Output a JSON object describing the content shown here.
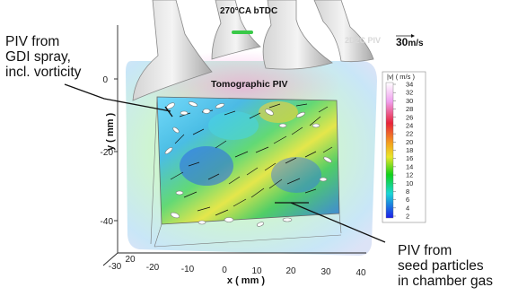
{
  "figure": {
    "title": "270°CA bTDC",
    "tomo_label": "Tomographic PIV",
    "faint_label": "2D2C PIV",
    "scale_label": "30",
    "scale_unit": "m/s",
    "y_axis_label": "y ( mm )",
    "x_axis_label": "x ( mm )",
    "y_ticks": [
      "0",
      "-20",
      "-40"
    ],
    "x_ticks": [
      "-30",
      "-20",
      "-10",
      "0",
      "10",
      "20",
      "30",
      "40"
    ],
    "x_ticks_extra": "20",
    "colorbar": {
      "title": "|v| ( m/s )",
      "ticks": [
        "34",
        "32",
        "30",
        "28",
        "26",
        "24",
        "22",
        "20",
        "18",
        "16",
        "14",
        "12",
        "10",
        "8",
        "6",
        "4",
        "2"
      ]
    }
  },
  "annotations": {
    "left": [
      "PIV from",
      "GDI spray,",
      "incl. vorticity"
    ],
    "right": [
      "PIV from",
      "seed particles",
      "in chamber gas"
    ]
  },
  "colors": {
    "colorbar_top": "#ffffff",
    "colorbar_mid": "#e8233a",
    "colorbar_low": "#11d11a",
    "colorbar_bottom": "#1d1ee8"
  }
}
